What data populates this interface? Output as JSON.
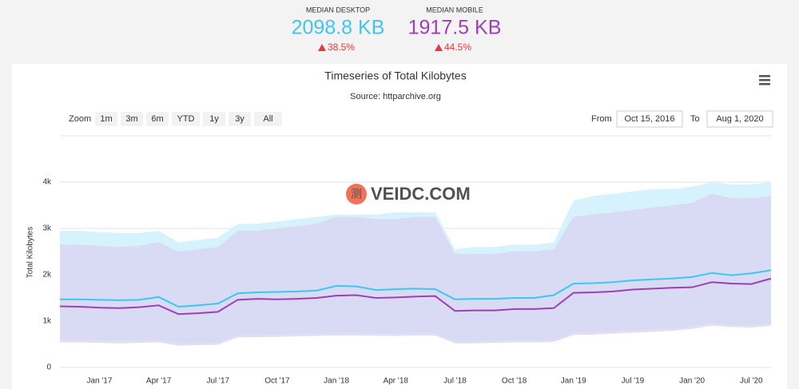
{
  "header": {
    "stats": [
      {
        "label": "MEDIAN DESKTOP",
        "value": "2098.8 KB",
        "change": "38.5%",
        "color": "#3ec6f2"
      },
      {
        "label": "MEDIAN MOBILE",
        "value": "1917.5 KB",
        "change": "44.5%",
        "color": "#a03fb5"
      }
    ]
  },
  "controls": {
    "zoom_label": "Zoom",
    "zoom_buttons": [
      "1m",
      "3m",
      "6m",
      "YTD",
      "1y",
      "3y",
      "All"
    ],
    "from_label": "From",
    "from": "Oct 15, 2016",
    "to_label": "To",
    "to": "Aug 1, 2020"
  },
  "watermark": {
    "icon": "测",
    "text": "VEIDC.COM"
  },
  "chart_data": {
    "type": "line",
    "title": "Timeseries of Total Kilobytes",
    "subtitle": "Source: httparchive.org",
    "y_label": "Total Kilobytes",
    "categories": [
      null,
      null,
      "Jan '17",
      null,
      null,
      "Apr '17",
      null,
      null,
      "Jul '17",
      null,
      null,
      "Oct '17",
      null,
      null,
      "Jan '18",
      null,
      null,
      "Apr '18",
      null,
      null,
      "Jul '18",
      null,
      null,
      "Oct '18",
      null,
      null,
      "Jan '19",
      null,
      null,
      "Jul '19",
      null,
      null,
      "Jan '20",
      null,
      null,
      "Jul '20",
      null
    ],
    "ylim": [
      0,
      4000
    ],
    "yticks": [
      0,
      {
        "value": 1000,
        "label": "1k"
      },
      {
        "value": 2000,
        "label": "2k"
      },
      {
        "value": 3000,
        "label": "3k"
      },
      {
        "value": 4000,
        "label": "4k"
      }
    ],
    "grid": true,
    "bands": [
      {
        "color": "#d6f2fc",
        "high": [
          2950,
          2950,
          2920,
          2900,
          2900,
          2950,
          2700,
          2750,
          2800,
          3100,
          3100,
          3150,
          3200,
          3250,
          3300,
          3300,
          3300,
          3350,
          3350,
          3350,
          2550,
          2600,
          2600,
          2650,
          2650,
          2700,
          3600,
          3700,
          3750,
          3800,
          3850,
          3850,
          3900,
          4000,
          3950,
          3950,
          4000
        ],
        "low": [
          600,
          600,
          590,
          580,
          590,
          600,
          520,
          530,
          540,
          700,
          700,
          710,
          720,
          730,
          740,
          740,
          730,
          730,
          740,
          740,
          570,
          570,
          580,
          590,
          590,
          600,
          750,
          760,
          780,
          800,
          820,
          840,
          880,
          950,
          920,
          910,
          950
        ]
      },
      {
        "color": "#d8d3f0",
        "high": [
          2650,
          2650,
          2620,
          2600,
          2620,
          2700,
          2500,
          2550,
          2600,
          2950,
          2950,
          3000,
          3050,
          3100,
          3250,
          3250,
          3200,
          3200,
          3250,
          3250,
          2450,
          2450,
          2450,
          2500,
          2500,
          2550,
          3250,
          3300,
          3350,
          3400,
          3450,
          3500,
          3550,
          3750,
          3650,
          3650,
          3700
        ],
        "low": [
          540,
          540,
          530,
          520,
          530,
          540,
          470,
          480,
          490,
          650,
          650,
          660,
          670,
          680,
          690,
          690,
          680,
          680,
          690,
          690,
          520,
          520,
          530,
          540,
          540,
          550,
          700,
          710,
          730,
          750,
          770,
          790,
          830,
          900,
          870,
          860,
          900
        ]
      }
    ],
    "series": [
      {
        "color": "#3ec6f2",
        "values": [
          1470,
          1470,
          1460,
          1450,
          1460,
          1520,
          1310,
          1340,
          1380,
          1600,
          1620,
          1630,
          1640,
          1660,
          1760,
          1750,
          1670,
          1690,
          1700,
          1690,
          1470,
          1480,
          1480,
          1500,
          1500,
          1560,
          1810,
          1820,
          1840,
          1880,
          1900,
          1920,
          1950,
          2040,
          1990,
          2030,
          2099
        ]
      },
      {
        "color": "#a03fb5",
        "values": [
          1320,
          1310,
          1290,
          1280,
          1300,
          1340,
          1150,
          1170,
          1200,
          1460,
          1480,
          1470,
          1480,
          1500,
          1550,
          1560,
          1500,
          1510,
          1530,
          1540,
          1220,
          1230,
          1230,
          1260,
          1260,
          1280,
          1610,
          1620,
          1640,
          1680,
          1700,
          1720,
          1730,
          1840,
          1810,
          1800,
          1918
        ]
      }
    ]
  }
}
